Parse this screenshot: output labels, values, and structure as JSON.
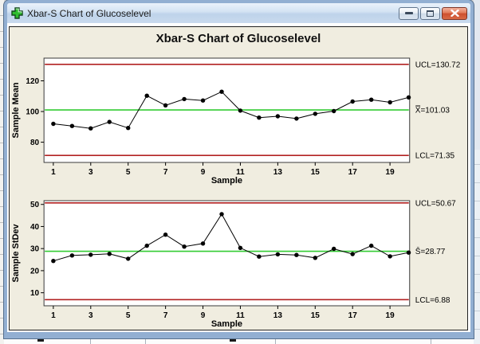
{
  "window": {
    "title": "Xbar-S Chart of Glucoselevel",
    "icons": {
      "window_icon": "minitab-graph-plus-icon",
      "minimize": "minimize-icon",
      "restore": "restore-icon",
      "close": "close-icon"
    }
  },
  "chart_title": "Xbar-S Chart of Glucoselevel",
  "chart_data": [
    {
      "type": "line",
      "name": "xbar-chart",
      "title": "Xbar-S Chart of Glucoselevel",
      "xlabel": "Sample",
      "ylabel": "Sample Mean",
      "x": [
        1,
        2,
        3,
        4,
        5,
        6,
        7,
        8,
        9,
        10,
        11,
        12,
        13,
        14,
        15,
        16,
        17,
        18,
        19,
        20
      ],
      "values": [
        92.0,
        90.6,
        89.0,
        93.2,
        89.3,
        110.3,
        104.0,
        108.1,
        107.2,
        112.9,
        100.6,
        96.0,
        96.9,
        95.4,
        98.5,
        100.3,
        106.5,
        107.7,
        106.0,
        109.2
      ],
      "xticks": [
        1,
        3,
        5,
        7,
        9,
        11,
        13,
        15,
        17,
        19
      ],
      "yticks": [
        80,
        100,
        120
      ],
      "xlim": [
        0.5,
        20.05
      ],
      "ylim": [
        66.8,
        134.8
      ],
      "grid": false,
      "point_color": "#000000",
      "lines": {
        "ucl": {
          "value": 130.72,
          "label": "UCL=130.72",
          "color": "#B22222"
        },
        "center": {
          "value": 101.03,
          "label": "X̿=101.03",
          "color": "#33CC33"
        },
        "lcl": {
          "value": 71.35,
          "label": "LCL=71.35",
          "color": "#B22222"
        }
      }
    },
    {
      "type": "line",
      "name": "s-chart",
      "title": "",
      "xlabel": "Sample",
      "ylabel": "Sample StDev",
      "x": [
        1,
        2,
        3,
        4,
        5,
        6,
        7,
        8,
        9,
        10,
        11,
        12,
        13,
        14,
        15,
        16,
        17,
        18,
        19,
        20
      ],
      "values": [
        24.4,
        26.9,
        27.2,
        27.6,
        25.4,
        31.3,
        36.3,
        30.9,
        32.3,
        45.6,
        30.3,
        26.4,
        27.4,
        27.1,
        25.8,
        29.9,
        27.5,
        31.3,
        26.5,
        28.2
      ],
      "xticks": [
        1,
        3,
        5,
        7,
        9,
        11,
        13,
        15,
        17,
        19
      ],
      "yticks": [
        10,
        20,
        30,
        40,
        50
      ],
      "xlim": [
        0.5,
        20.05
      ],
      "ylim": [
        4.1,
        51.7
      ],
      "grid": false,
      "point_color": "#000000",
      "lines": {
        "ucl": {
          "value": 50.67,
          "label": "UCL=50.67",
          "color": "#B22222"
        },
        "center": {
          "value": 28.77,
          "label": "S̄=28.77",
          "color": "#33CC33"
        },
        "lcl": {
          "value": 6.88,
          "label": "LCL=6.88",
          "color": "#B22222"
        }
      }
    }
  ]
}
